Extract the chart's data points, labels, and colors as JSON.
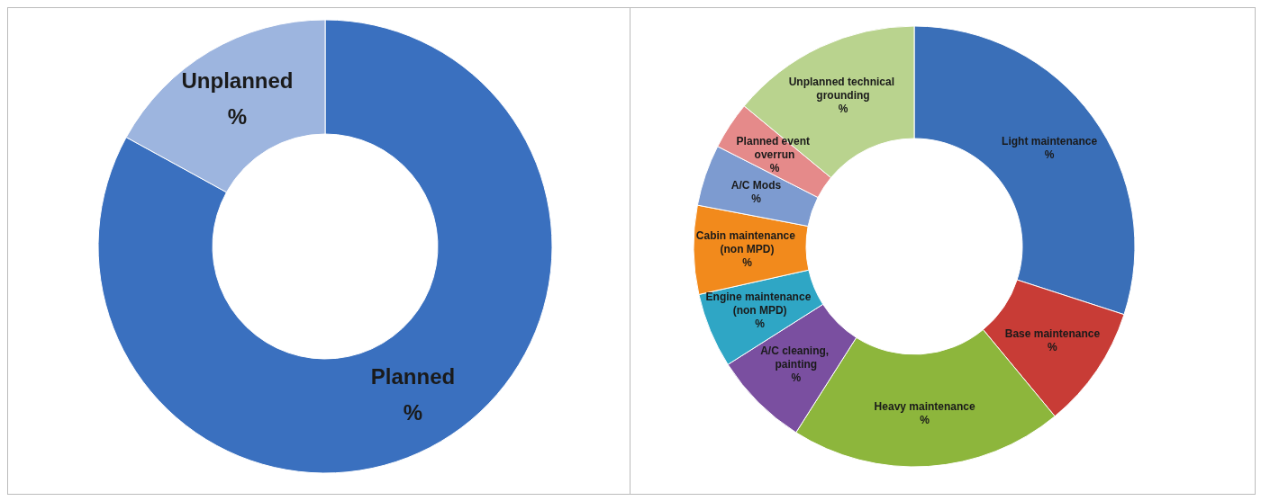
{
  "chart_data": [
    {
      "type": "donut",
      "categories": [
        "Planned",
        "Unplanned"
      ],
      "values": [
        83,
        17
      ],
      "colors": [
        "#3a70bf",
        "#9db5df"
      ],
      "value_labels": [
        "%",
        "%"
      ]
    },
    {
      "type": "donut",
      "categories": [
        "Light maintenance",
        "Base maintenance",
        "Heavy maintenance",
        "A/C cleaning, painting",
        "Engine maintenance (non MPD)",
        "Cabin maintenance (non MPD)",
        "A/C Mods",
        "Planned event overrun",
        "Unplanned technical grounding"
      ],
      "values": [
        30,
        9,
        20,
        7,
        5.5,
        6.5,
        4.5,
        3.5,
        14
      ],
      "colors": [
        "#3a6fb8",
        "#c83c36",
        "#8db63c",
        "#7a4fa0",
        "#2fa6c5",
        "#f28a1c",
        "#7d9bd0",
        "#e58a8a",
        "#b9d38e"
      ],
      "value_labels": [
        "%",
        "%",
        "%",
        "%",
        "%",
        "%",
        "%",
        "%",
        "%"
      ]
    }
  ]
}
